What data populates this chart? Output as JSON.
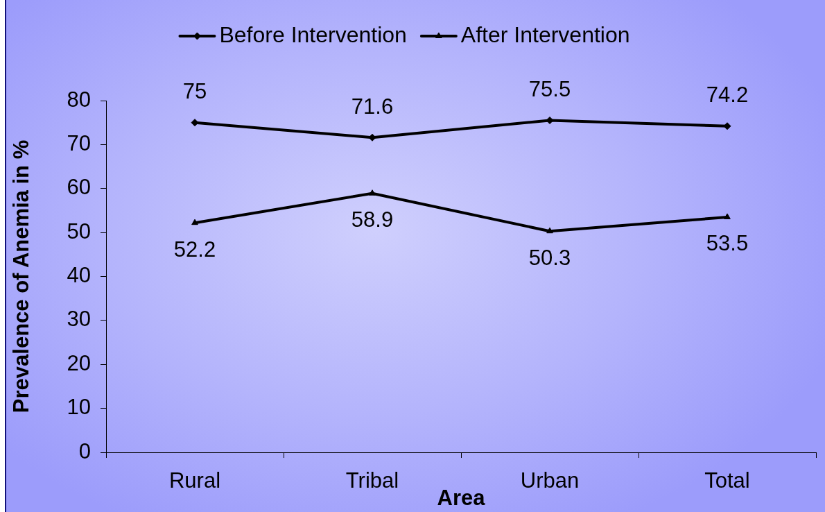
{
  "chart_data": {
    "type": "line",
    "xlabel": "Area",
    "ylabel": "Prevalence of Anemia in %",
    "categories": [
      "Rural",
      "Tribal",
      "Urban",
      "Total"
    ],
    "series": [
      {
        "name": "Before Intervention",
        "color": "#000000",
        "marker": "diamond",
        "values": [
          75,
          71.6,
          75.5,
          74.2
        ]
      },
      {
        "name": "After Intervention",
        "color": "#000000",
        "marker": "triangle",
        "values": [
          52.2,
          58.9,
          50.3,
          53.5
        ]
      }
    ],
    "ylim": [
      0,
      80
    ],
    "yticks": [
      0,
      10,
      20,
      30,
      40,
      50,
      60,
      70,
      80
    ],
    "data_labels": true,
    "legend": "top"
  }
}
